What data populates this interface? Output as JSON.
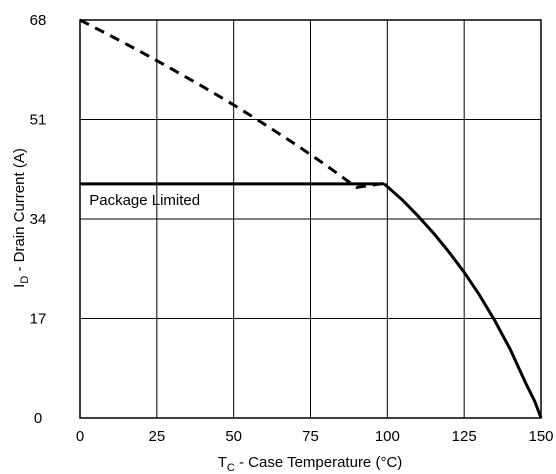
{
  "chart_data": {
    "type": "line",
    "xlabel_main": "T",
    "xlabel_sub": "C",
    "xlabel_rest": " - Case Temperature (°C)",
    "ylabel_main": "I",
    "ylabel_sub": "D",
    "ylabel_rest": " - Drain Current (A)",
    "xlim": [
      0,
      150
    ],
    "ylim": [
      0,
      68
    ],
    "xticks": [
      0,
      25,
      50,
      75,
      100,
      125,
      150
    ],
    "yticks": [
      0,
      17,
      34,
      51,
      68
    ],
    "grid": true,
    "series": [
      {
        "style": "dashed",
        "x": [
          0,
          10,
          20,
          30,
          40,
          50,
          60,
          70,
          80,
          90,
          99
        ],
        "y": [
          68,
          65.3,
          62.5,
          59.6,
          56.6,
          53.5,
          50.2,
          46.8,
          43.2,
          39.4,
          40.1
        ]
      },
      {
        "style": "solid",
        "x": [
          99,
          105,
          110,
          115,
          120,
          125,
          130,
          135,
          140,
          145,
          148,
          150
        ],
        "y": [
          40,
          37.2,
          34.5,
          31.6,
          28.4,
          24.9,
          21.0,
          16.6,
          11.7,
          6.0,
          2.8,
          0
        ]
      },
      {
        "style": "solid",
        "x": [
          0,
          99
        ],
        "y": [
          40,
          40
        ]
      }
    ],
    "annotations": [
      {
        "text": "Package Limited",
        "x": 3,
        "y": 36.4
      }
    ]
  }
}
